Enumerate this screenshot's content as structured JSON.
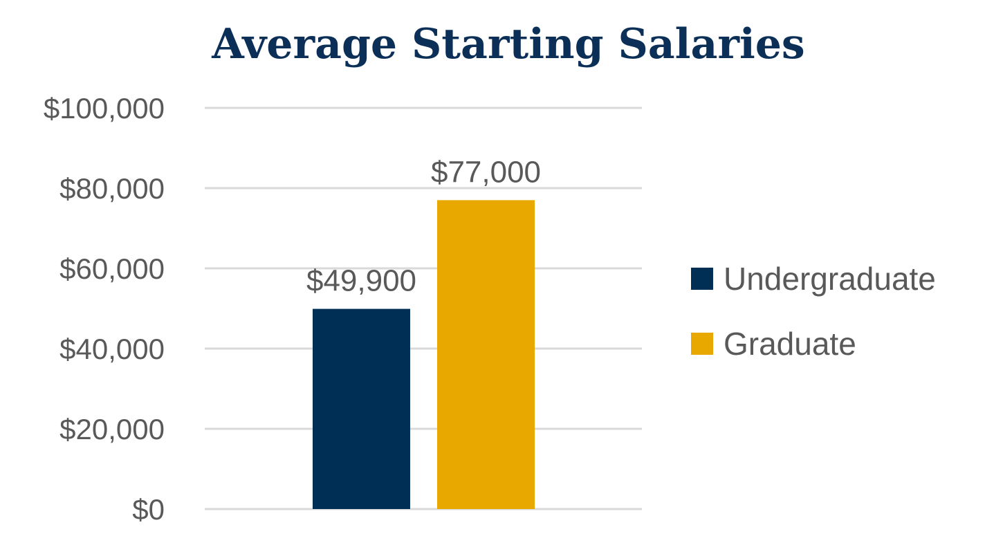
{
  "colors": {
    "title": "#0b2f57",
    "text": "#595959",
    "grid": "#d9d9d9",
    "undergraduate": "#002f56",
    "graduate": "#e9a800"
  },
  "chart_data": {
    "type": "bar",
    "title": "Average Starting Salaries",
    "xlabel": "",
    "ylabel": "",
    "ylim": [
      0,
      100000
    ],
    "yticks": [
      0,
      20000,
      40000,
      60000,
      80000,
      100000
    ],
    "ytick_labels": [
      "$0",
      "$20,000",
      "$40,000",
      "$60,000",
      "$80,000",
      "$100,000"
    ],
    "grid": true,
    "legend_position": "right",
    "series": [
      {
        "name": "Undergraduate",
        "values": [
          49900
        ],
        "data_label": "$49,900",
        "color": "#002f56"
      },
      {
        "name": "Graduate",
        "values": [
          77000
        ],
        "data_label": "$77,000",
        "color": "#e9a800"
      }
    ]
  }
}
